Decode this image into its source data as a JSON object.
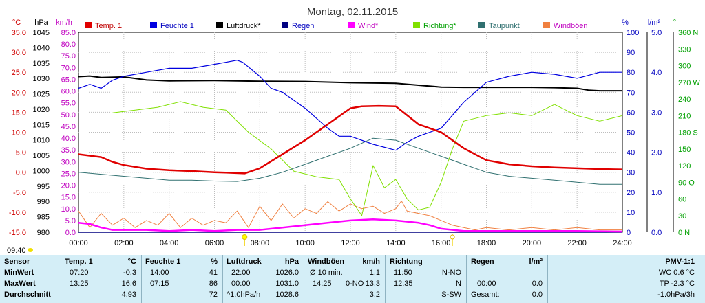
{
  "chart_data": {
    "type": "line",
    "title": "Montag, 02.11.2015",
    "x_ticks": [
      "00:00",
      "02:00",
      "04:00",
      "06:00",
      "08:00",
      "10:00",
      "12:00",
      "14:00",
      "16:00",
      "18:00",
      "20:00",
      "22:00",
      "24:00"
    ],
    "xlim": [
      0,
      24
    ],
    "axes": {
      "temp": {
        "unit": "°C",
        "ylim": [
          -15,
          35
        ],
        "ticks": [
          "35.0",
          "30.0",
          "25.0",
          "20.0",
          "15.0",
          "10.0",
          "5.0",
          "0.0",
          "-5.0",
          "-10.0",
          "-15.0"
        ],
        "color": "#d00000"
      },
      "pressure": {
        "unit": "hPa",
        "ylim": [
          980,
          1045
        ],
        "ticks": [
          "1045",
          "1040",
          "1035",
          "1030",
          "1025",
          "1020",
          "1015",
          "1010",
          "1005",
          "1000",
          "995",
          "990",
          "985",
          "980"
        ],
        "color": "#000000"
      },
      "wind": {
        "unit": "km/h",
        "ylim": [
          0,
          85
        ],
        "ticks": [
          "85.0",
          "80.0",
          "75.0",
          "70.0",
          "65.0",
          "60.0",
          "55.0",
          "50.0",
          "45.0",
          "40.0",
          "35.0",
          "30.0",
          "25.0",
          "20.0",
          "15.0",
          "10.0",
          "5.0",
          "0.0"
        ],
        "color": "#c000c0"
      },
      "humidity": {
        "unit": "%",
        "ylim": [
          0,
          100
        ],
        "ticks": [
          "100",
          "90",
          "80",
          "70",
          "60",
          "50",
          "40",
          "30",
          "20",
          "10",
          "0"
        ],
        "color": "#0000c0"
      },
      "rain": {
        "unit": "l/m²",
        "ylim": [
          0,
          5
        ],
        "ticks": [
          "5.0",
          "4.0",
          "3.0",
          "2.0",
          "1.0",
          "0.0"
        ],
        "color": "#0000c0"
      },
      "direction": {
        "unit": "°",
        "ylim": [
          0,
          360
        ],
        "ticks": [
          "360 N",
          "330",
          "300",
          "270 W",
          "240",
          "210",
          "180 S",
          "150",
          "120",
          "90 O",
          "60",
          "30",
          "0 N"
        ],
        "color": "#00a000"
      }
    },
    "series": [
      {
        "name": "Temp. 1",
        "color": "#e00000",
        "axis": "temp",
        "x": [
          0,
          1,
          1.5,
          2,
          3,
          4,
          5,
          6,
          6.5,
          7.33,
          8,
          9,
          10,
          11,
          12,
          12.5,
          13.25,
          14,
          15,
          16,
          17,
          18,
          19,
          20,
          21,
          22,
          23,
          24
        ],
        "y": [
          4.5,
          3.8,
          2.6,
          1.8,
          0.9,
          0.5,
          0.3,
          0.0,
          -0.1,
          -0.3,
          1.0,
          4.5,
          8.0,
          12.0,
          16.0,
          16.5,
          16.6,
          16.5,
          12.0,
          10.0,
          6.0,
          3.0,
          2.0,
          1.5,
          1.2,
          1.0,
          0.8,
          0.7
        ]
      },
      {
        "name": "Feuchte 1",
        "color": "#0000e0",
        "axis": "humidity",
        "x": [
          0,
          0.5,
          1,
          1.5,
          2,
          3,
          4,
          5,
          6,
          7,
          7.25,
          8,
          8.5,
          9,
          10,
          11,
          11.5,
          12,
          13,
          14,
          14.5,
          15,
          16,
          17,
          18,
          19,
          20,
          21,
          22,
          23,
          24
        ],
        "y": [
          72,
          74,
          72,
          76,
          78,
          80,
          82,
          82,
          84,
          86,
          85,
          78,
          72,
          70,
          62,
          52,
          48,
          48,
          44,
          41,
          45,
          48,
          52,
          65,
          75,
          78,
          80,
          79,
          77,
          80,
          80
        ]
      },
      {
        "name": "Luftdruck*",
        "color": "#000000",
        "axis": "pressure",
        "x": [
          0,
          0.5,
          1,
          2,
          3,
          4,
          6,
          8,
          10,
          12,
          14,
          15,
          16,
          17,
          18,
          20,
          21,
          22,
          22.5,
          23,
          24
        ],
        "y": [
          1030.6,
          1030.8,
          1030.3,
          1030.5,
          1029.5,
          1029.2,
          1029.3,
          1029.1,
          1029.0,
          1028.6,
          1028.4,
          1027.8,
          1027.2,
          1027.1,
          1027.1,
          1027.1,
          1027.0,
          1026.8,
          1026.2,
          1026.0,
          1026.0
        ]
      },
      {
        "name": "Regen",
        "color": "#000080",
        "axis": "rain",
        "x": [
          0,
          24
        ],
        "y": [
          0,
          0
        ]
      },
      {
        "name": "Wind*",
        "color": "#ff00ff",
        "axis": "wind",
        "x": [
          0,
          0.5,
          1,
          1.5,
          2,
          3,
          4,
          5,
          6,
          7,
          8,
          9,
          10,
          11,
          12,
          13,
          14,
          15,
          15.5,
          16,
          17,
          18,
          20,
          22,
          24
        ],
        "y": [
          4,
          3.5,
          2,
          1,
          1,
          1,
          0.5,
          1,
          0.5,
          1,
          1,
          2,
          3,
          4,
          5,
          5.5,
          5,
          4,
          3,
          1.5,
          0.5,
          0.5,
          0.5,
          0.5,
          0.3
        ]
      },
      {
        "name": "Richtung*",
        "color": "#80e000",
        "axis": "direction",
        "x": [
          1.5,
          2.5,
          3.5,
          4.5,
          5.5,
          6.5,
          7.5,
          8.5,
          9.5,
          10.5,
          11.5,
          12,
          12.5,
          13,
          13.5,
          14,
          14.5,
          15,
          15.5,
          16,
          16.5,
          17,
          18,
          19,
          20,
          21,
          22,
          23,
          24
        ],
        "y": [
          215,
          220,
          225,
          235,
          225,
          220,
          180,
          150,
          110,
          100,
          95,
          60,
          30,
          120,
          80,
          95,
          60,
          40,
          45,
          90,
          150,
          200,
          210,
          215,
          210,
          230,
          210,
          200,
          210
        ]
      },
      {
        "name": "Taupunkt",
        "color": "#307070",
        "axis": "temp",
        "x": [
          0,
          1,
          2,
          3,
          4,
          5,
          6,
          7,
          8,
          9,
          10,
          11,
          12,
          13,
          14,
          15,
          16,
          17,
          18,
          19,
          20,
          21,
          22,
          23,
          24
        ],
        "y": [
          0.0,
          -0.5,
          -1.0,
          -1.5,
          -2.0,
          -2.0,
          -2.2,
          -2.3,
          -1.5,
          0.0,
          2.0,
          4.0,
          6.0,
          8.5,
          8.0,
          6.0,
          4.0,
          2.0,
          0.0,
          -1.0,
          -1.5,
          -2.0,
          -2.5,
          -3.0,
          -3.0
        ]
      },
      {
        "name": "Windböen",
        "color": "#f08040",
        "axis": "wind",
        "x": [
          0,
          0.5,
          1,
          1.5,
          2,
          2.5,
          3,
          3.5,
          4,
          4.5,
          5,
          5.5,
          6,
          6.5,
          7,
          7.5,
          8,
          8.5,
          9,
          9.5,
          10,
          10.5,
          11,
          11.5,
          12,
          12.5,
          13,
          13.5,
          14,
          14.25,
          14.5,
          15,
          15.5,
          16,
          16.5,
          17,
          17.5,
          18,
          19,
          20,
          21,
          22,
          23,
          24
        ],
        "y": [
          9,
          2,
          8,
          3,
          6,
          2,
          5,
          3,
          8,
          2,
          6,
          3,
          5,
          4,
          9,
          2,
          11,
          5,
          12,
          6,
          10,
          8,
          13,
          9,
          12,
          10,
          11,
          8,
          10,
          13.3,
          9,
          8,
          7,
          5,
          3,
          2,
          1,
          2,
          1,
          2,
          1,
          2,
          1,
          1
        ]
      }
    ],
    "markers": [
      {
        "label": "09:40",
        "value": "09:40",
        "x": 7.33,
        "symbol": "moon"
      },
      {
        "x": 7.33,
        "symbol": "sun"
      },
      {
        "x": 16.5,
        "symbol": "sunset"
      }
    ]
  },
  "legend": [
    {
      "label": "Temp. 1",
      "color": "#e00000",
      "text_color": "#c00000"
    },
    {
      "label": "Feuchte 1",
      "color": "#0000e0",
      "text_color": "#0000c0"
    },
    {
      "label": "Luftdruck*",
      "color": "#000000",
      "text_color": "#000000"
    },
    {
      "label": "Regen",
      "color": "#000080",
      "text_color": "#0000c0"
    },
    {
      "label": "Wind*",
      "color": "#ff00ff",
      "text_color": "#c000c0"
    },
    {
      "label": "Richtung*",
      "color": "#80e000",
      "text_color": "#00a000"
    },
    {
      "label": "Taupunkt",
      "color": "#307070",
      "text_color": "#307070"
    },
    {
      "label": "Windböen",
      "color": "#f08040",
      "text_color": "#c000c0"
    }
  ],
  "time_label": "09:40",
  "table": {
    "sensor": {
      "header": "Sensor",
      "rows": [
        "MinWert",
        "MaxWert",
        "Durchschnitt"
      ]
    },
    "temp": {
      "header": "Temp. 1",
      "unit": "°C",
      "rows": [
        [
          "07:20",
          "-0.3"
        ],
        [
          "13:25",
          "16.6"
        ],
        [
          "",
          "4.93"
        ]
      ]
    },
    "feuchte": {
      "header": "Feuchte 1",
      "unit": "%",
      "rows": [
        [
          "14:00",
          "41"
        ],
        [
          "07:15",
          "86"
        ],
        [
          "",
          "72"
        ]
      ]
    },
    "luftdruck": {
      "header": "Luftdruck",
      "unit": "hPa",
      "rows": [
        [
          "22:00",
          "1026.0"
        ],
        [
          "00:00",
          "1031.0"
        ],
        [
          "^1.0hPa/h",
          "1028.6"
        ]
      ]
    },
    "windboeen": {
      "header": "Windböen",
      "unit": "km/h",
      "rows": [
        [
          "Ø 10 min.",
          "",
          "1.1"
        ],
        [
          "14:25",
          "0-NO",
          "13.3"
        ],
        [
          "",
          "",
          "3.2"
        ]
      ]
    },
    "richtung": {
      "header": "Richtung",
      "rows": [
        [
          "11:50",
          "N-NO"
        ],
        [
          "12:35",
          "N"
        ],
        [
          "",
          "S-SW"
        ]
      ]
    },
    "regen": {
      "header": "Regen",
      "unit": "l/m²",
      "rows": [
        [
          "",
          ""
        ],
        [
          "00:00",
          "0.0"
        ],
        [
          "Gesamt:",
          "0.0"
        ]
      ]
    },
    "pmv": {
      "header": "PMV-1:1",
      "rows": [
        "WC 0.6 °C",
        "TP -2.3 °C",
        "-1.0hPa/3h"
      ]
    }
  }
}
